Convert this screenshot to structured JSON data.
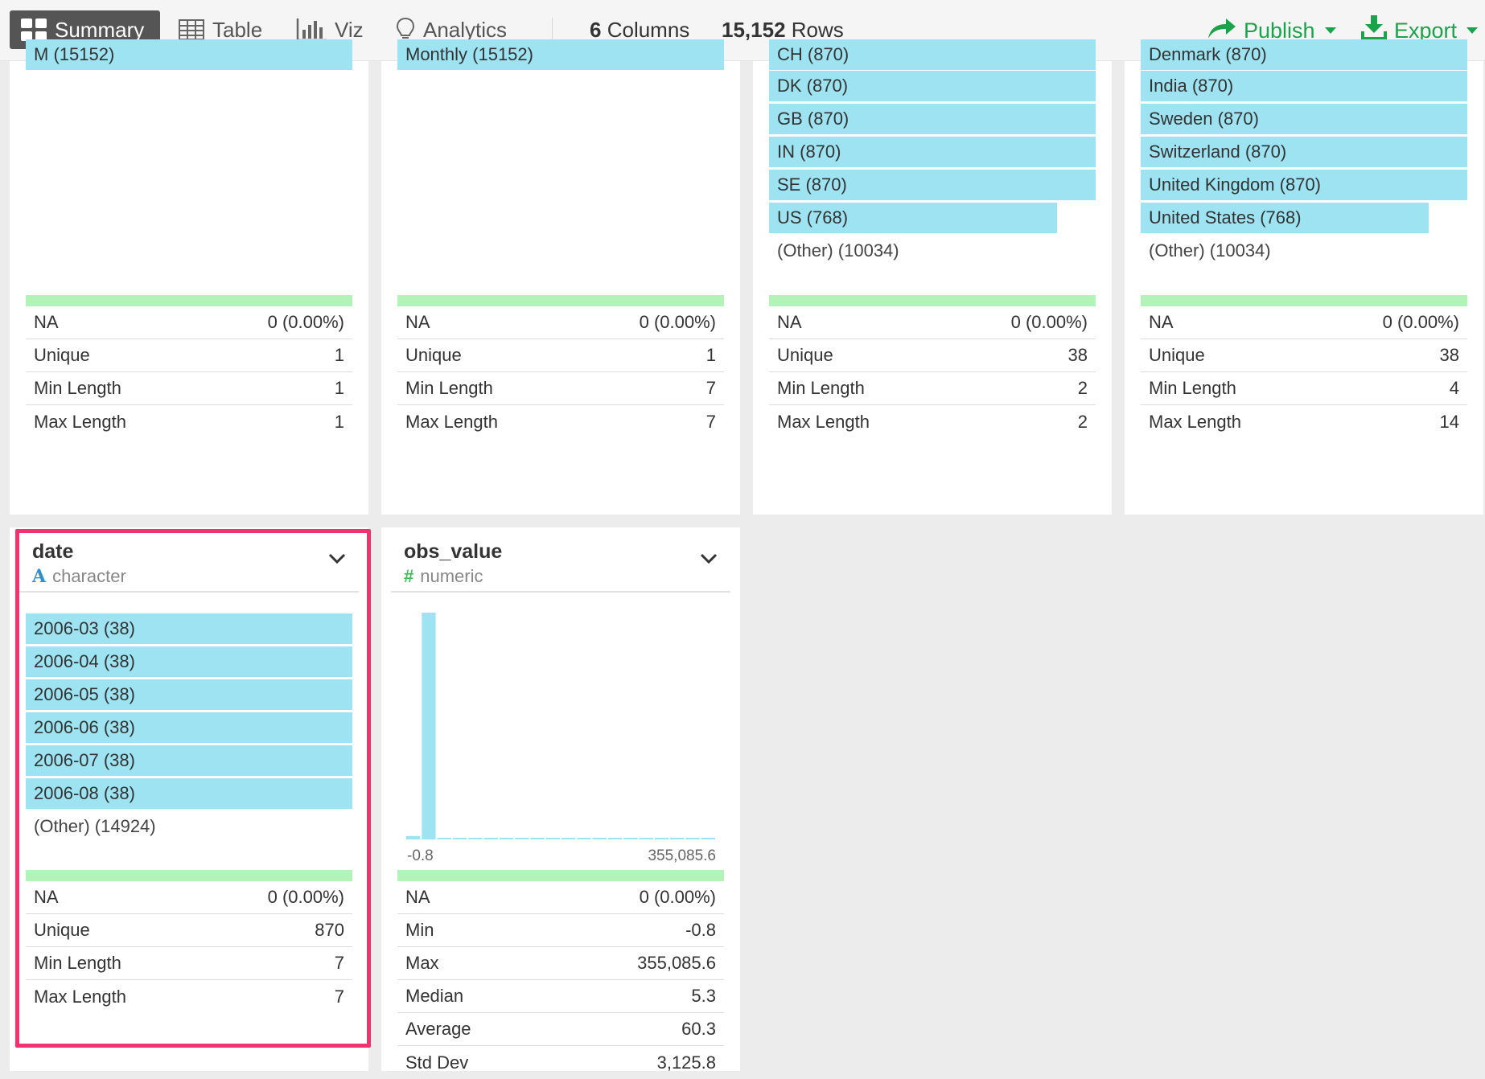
{
  "toolbar": {
    "tabs": [
      {
        "label": "Summary",
        "icon": "grid-icon",
        "active": true
      },
      {
        "label": "Table",
        "icon": "table-icon",
        "active": false
      },
      {
        "label": "Viz",
        "icon": "bar-chart-icon",
        "active": false
      },
      {
        "label": "Analytics",
        "icon": "lightbulb-icon",
        "active": false
      }
    ],
    "columns_count": "6",
    "columns_label": "Columns",
    "rows_count": "15,152",
    "rows_label": "Rows",
    "publish_label": "Publish",
    "export_label": "Export",
    "accent_color": "#1aa34a"
  },
  "cards_top": [
    {
      "partial_top_label": "M (15152)",
      "bars": [],
      "other": "",
      "stats": [
        {
          "label": "NA",
          "value": "0 (0.00%)"
        },
        {
          "label": "Unique",
          "value": "1"
        },
        {
          "label": "Min Length",
          "value": "1"
        },
        {
          "label": "Max Length",
          "value": "1"
        }
      ]
    },
    {
      "partial_top_label": "Monthly (15152)",
      "bars": [],
      "other": "",
      "stats": [
        {
          "label": "NA",
          "value": "0 (0.00%)"
        },
        {
          "label": "Unique",
          "value": "1"
        },
        {
          "label": "Min Length",
          "value": "7"
        },
        {
          "label": "Max Length",
          "value": "7"
        }
      ]
    },
    {
      "partial_top_label": "CH (870)",
      "bars": [
        {
          "label": "DK (870)",
          "fraction": 1.0
        },
        {
          "label": "GB (870)",
          "fraction": 1.0
        },
        {
          "label": "IN (870)",
          "fraction": 1.0
        },
        {
          "label": "SE (870)",
          "fraction": 1.0
        },
        {
          "label": "US (768)",
          "fraction": 0.883
        }
      ],
      "other": "(Other) (10034)",
      "stats": [
        {
          "label": "NA",
          "value": "0 (0.00%)"
        },
        {
          "label": "Unique",
          "value": "38"
        },
        {
          "label": "Min Length",
          "value": "2"
        },
        {
          "label": "Max Length",
          "value": "2"
        }
      ]
    },
    {
      "partial_top_label": "Denmark (870)",
      "bars": [
        {
          "label": "India (870)",
          "fraction": 1.0
        },
        {
          "label": "Sweden (870)",
          "fraction": 1.0
        },
        {
          "label": "Switzerland (870)",
          "fraction": 1.0
        },
        {
          "label": "United Kingdom (870)",
          "fraction": 1.0
        },
        {
          "label": "United States (768)",
          "fraction": 0.883
        }
      ],
      "other": "(Other) (10034)",
      "stats": [
        {
          "label": "NA",
          "value": "0 (0.00%)"
        },
        {
          "label": "Unique",
          "value": "38"
        },
        {
          "label": "Min Length",
          "value": "4"
        },
        {
          "label": "Max Length",
          "value": "14"
        }
      ]
    }
  ],
  "date_card": {
    "title": "date",
    "type_icon": "character-type-icon",
    "type": "character",
    "bars": [
      {
        "label": "2006-03 (38)",
        "fraction": 1.0
      },
      {
        "label": "2006-04 (38)",
        "fraction": 1.0
      },
      {
        "label": "2006-05 (38)",
        "fraction": 1.0
      },
      {
        "label": "2006-06 (38)",
        "fraction": 1.0
      },
      {
        "label": "2006-07 (38)",
        "fraction": 1.0
      },
      {
        "label": "2006-08 (38)",
        "fraction": 1.0
      }
    ],
    "other": "(Other) (14924)",
    "stats": [
      {
        "label": "NA",
        "value": "0 (0.00%)"
      },
      {
        "label": "Unique",
        "value": "870"
      },
      {
        "label": "Min Length",
        "value": "7"
      },
      {
        "label": "Max Length",
        "value": "7"
      }
    ],
    "highlight_color": "#f0326e"
  },
  "obs_card": {
    "title": "obs_value",
    "type_icon": "numeric-type-icon",
    "type": "numeric",
    "hist_min_label": "-0.8",
    "hist_max_label": "355,085.6",
    "stats": [
      {
        "label": "NA",
        "value": "0 (0.00%)"
      },
      {
        "label": "Min",
        "value": "-0.8"
      },
      {
        "label": "Max",
        "value": "355,085.6"
      },
      {
        "label": "Median",
        "value": "5.3"
      },
      {
        "label": "Average",
        "value": "60.3"
      },
      {
        "label": "Std Dev",
        "value": "3,125.8"
      }
    ]
  },
  "chart_data": {
    "type": "bar",
    "title": "",
    "xlabel": "",
    "ylabel": "",
    "xlim": [
      -0.8,
      355085.6
    ],
    "bins": 20,
    "values": [
      0.015,
      1.0,
      0.004,
      0.004,
      0.004,
      0.004,
      0.004,
      0.004,
      0.004,
      0.004,
      0.004,
      0.004,
      0.004,
      0.004,
      0.004,
      0.004,
      0.004,
      0.004,
      0.004,
      0.004
    ],
    "bar_color": "#9de3f1"
  }
}
